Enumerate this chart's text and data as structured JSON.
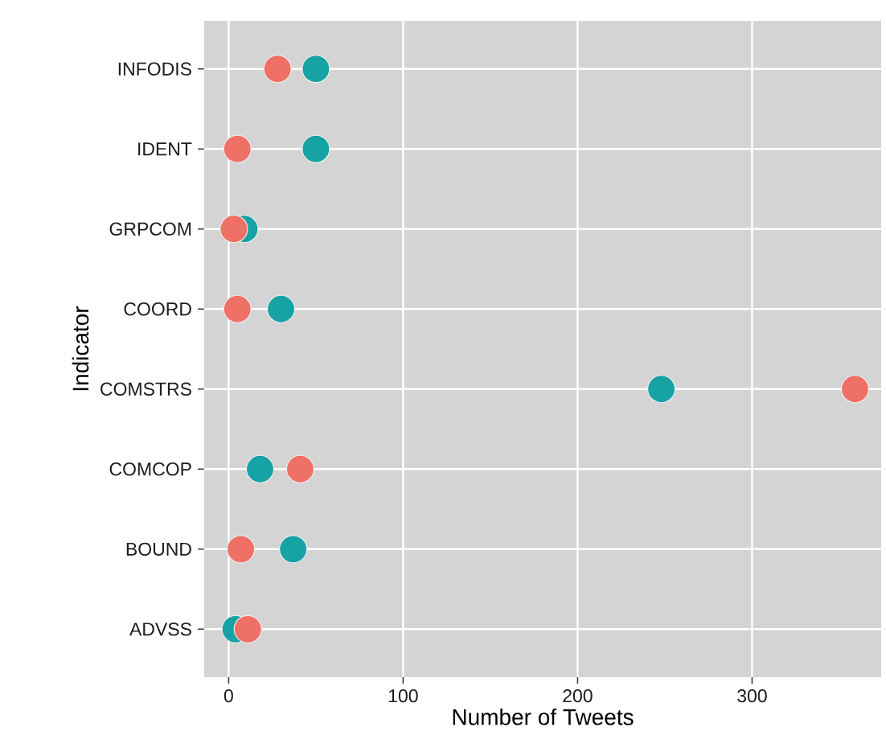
{
  "chart_data": {
    "type": "scatter",
    "orientation": "horizontal",
    "xlabel": "Number of Tweets",
    "ylabel": "Indicator",
    "categories": [
      "INFODIS",
      "IDENT",
      "GRPCOM",
      "COORD",
      "COMSTRS",
      "COMCOP",
      "BOUND",
      "ADVSS"
    ],
    "series": [
      {
        "color": "#17a2a4",
        "values": [
          50,
          50,
          9,
          30,
          248,
          18,
          37,
          4
        ]
      },
      {
        "color": "#ef7065",
        "values": [
          28,
          5,
          3,
          5,
          359,
          41,
          7,
          11
        ]
      }
    ],
    "xlim": [
      -14,
      374
    ],
    "xticks": [
      0,
      100,
      200,
      300
    ],
    "grid": true,
    "marker": "circle"
  }
}
